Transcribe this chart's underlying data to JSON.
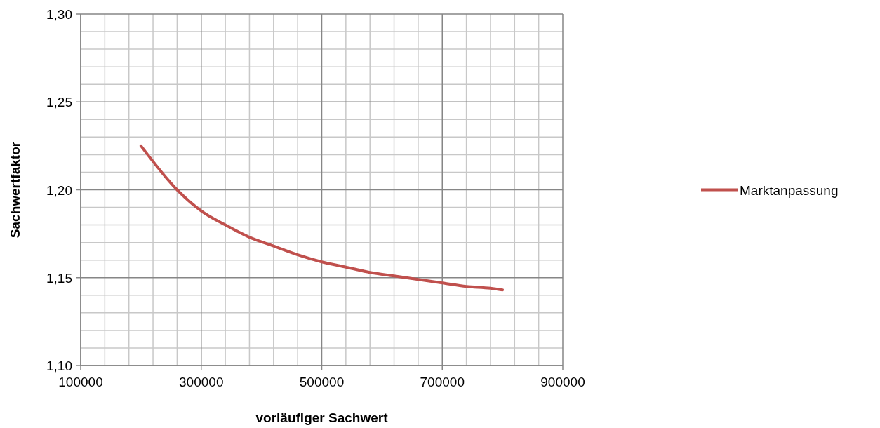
{
  "chart_data": {
    "type": "line",
    "xlabel": "vorläufiger Sachwert",
    "ylabel": "Sachwertfaktor",
    "xlim": [
      100000,
      900000
    ],
    "xticks": [
      100000,
      300000,
      500000,
      700000,
      900000
    ],
    "ylim": [
      1.1,
      1.3
    ],
    "yticks": [
      {
        "value": 1.1,
        "label": "1,10"
      },
      {
        "value": 1.15,
        "label": "1,15"
      },
      {
        "value": 1.2,
        "label": "1,20"
      },
      {
        "value": 1.25,
        "label": "1,25"
      },
      {
        "value": 1.3,
        "label": "1,30"
      }
    ],
    "grid": true,
    "legend": "right",
    "marker": "none",
    "line_style": "solid",
    "series": [
      {
        "name": "Marktanpassung",
        "color": "#c0504d",
        "x": [
          200000,
          260000,
          300000,
          340000,
          380000,
          420000,
          460000,
          500000,
          540000,
          580000,
          620000,
          660000,
          700000,
          740000,
          780000,
          800000
        ],
        "values": [
          1.225,
          1.2,
          1.188,
          1.18,
          1.173,
          1.168,
          1.163,
          1.159,
          1.156,
          1.153,
          1.151,
          1.149,
          1.147,
          1.145,
          1.144,
          1.143
        ]
      }
    ]
  }
}
